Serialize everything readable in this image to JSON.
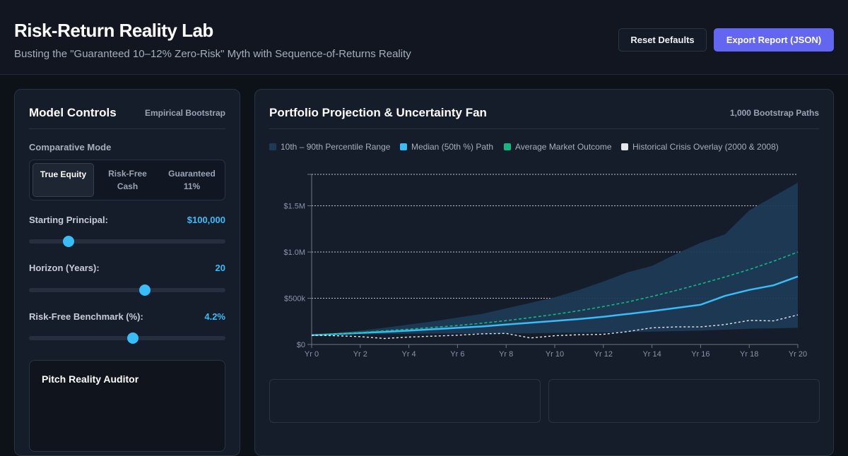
{
  "header": {
    "title": "Risk-Return Reality Lab",
    "subtitle": "Busting the \"Guaranteed 10–12% Zero-Risk\" Myth with Sequence-of-Returns Reality",
    "reset_label": "Reset Defaults",
    "export_label": "Export Report (JSON)"
  },
  "controls": {
    "title": "Model Controls",
    "tag": "Empirical Bootstrap",
    "mode_label": "Comparative Mode",
    "modes": [
      {
        "line1": "True Equity",
        "line2": "",
        "active": true
      },
      {
        "line1": "Risk-Free",
        "line2": "Cash",
        "active": false
      },
      {
        "line1": "Guaranteed",
        "line2": "11%",
        "active": false
      }
    ],
    "principal": {
      "label": "Starting Principal:",
      "value": "$100,000",
      "fraction": 0.2
    },
    "horizon": {
      "label": "Horizon (Years):",
      "value": "20",
      "fraction": 0.59
    },
    "benchmark": {
      "label": "Risk-Free Benchmark (%):",
      "value": "4.2%",
      "fraction": 0.53
    }
  },
  "auditor": {
    "title": "Pitch Reality Auditor"
  },
  "projection": {
    "title": "Portfolio Projection & Uncertainty Fan",
    "tag": "1,000 Bootstrap Paths",
    "legend": [
      {
        "label": "10th – 90th Percentile Range",
        "color": "#1e3a55"
      },
      {
        "label": "Median (50th %) Path",
        "color": "#38bdf8"
      },
      {
        "label": "Average Market Outcome",
        "color": "#10b981"
      },
      {
        "label": "Historical Crisis Overlay (2000 & 2008)",
        "color": "#e5e7eb"
      }
    ]
  },
  "chart_data": {
    "type": "area",
    "x": [
      0,
      1,
      2,
      3,
      4,
      5,
      6,
      7,
      8,
      9,
      10,
      11,
      12,
      13,
      14,
      15,
      16,
      17,
      18,
      19,
      20
    ],
    "x_tick_labels": [
      "Yr 0",
      "Yr 2",
      "Yr 4",
      "Yr 6",
      "Yr 8",
      "Yr 10",
      "Yr 12",
      "Yr 14",
      "Yr 16",
      "Yr 18",
      "Yr 20"
    ],
    "x_tick_values": [
      0,
      2,
      4,
      6,
      8,
      10,
      12,
      14,
      16,
      18,
      20
    ],
    "y_tick_labels": [
      "$0",
      "$500k",
      "$1.0M",
      "$1.5M"
    ],
    "y_tick_values": [
      0,
      500000,
      1000000,
      1500000
    ],
    "ylim": [
      0,
      1840000
    ],
    "xlim": [
      0,
      20
    ],
    "grid": true,
    "series": [
      {
        "name": "10th – 90th Percentile Range",
        "kind": "band",
        "lower": [
          100000,
          105000,
          110000,
          112000,
          115000,
          118000,
          120000,
          118000,
          120000,
          121000,
          125000,
          128000,
          130000,
          135000,
          140000,
          145000,
          150000,
          160000,
          170000,
          175000,
          180000
        ],
        "upper": [
          100000,
          125000,
          150000,
          180000,
          215000,
          250000,
          290000,
          330000,
          390000,
          450000,
          510000,
          590000,
          680000,
          780000,
          850000,
          980000,
          1100000,
          1190000,
          1450000,
          1600000,
          1750000
        ],
        "color": "#1e3a55"
      },
      {
        "name": "Median (50th %) Path",
        "kind": "line",
        "values": [
          100000,
          112000,
          125000,
          137000,
          150000,
          165000,
          180000,
          195000,
          215000,
          235000,
          255000,
          275000,
          300000,
          330000,
          360000,
          395000,
          430000,
          525000,
          590000,
          640000,
          735000
        ],
        "color": "#38bdf8"
      },
      {
        "name": "Average Market Outcome",
        "kind": "dashed",
        "values": [
          100000,
          115000,
          130000,
          148000,
          165000,
          185000,
          205000,
          230000,
          258000,
          290000,
          325000,
          365000,
          410000,
          460000,
          520000,
          585000,
          655000,
          730000,
          810000,
          900000,
          1000000
        ],
        "color": "#10b981"
      },
      {
        "name": "Historical Crisis Overlay (2000 & 2008)",
        "kind": "dotted",
        "values": [
          100000,
          95000,
          85000,
          65000,
          80000,
          90000,
          100000,
          115000,
          120000,
          70000,
          95000,
          105000,
          110000,
          140000,
          180000,
          190000,
          190000,
          215000,
          260000,
          255000,
          320000
        ],
        "color": "#e5e7eb"
      }
    ]
  }
}
